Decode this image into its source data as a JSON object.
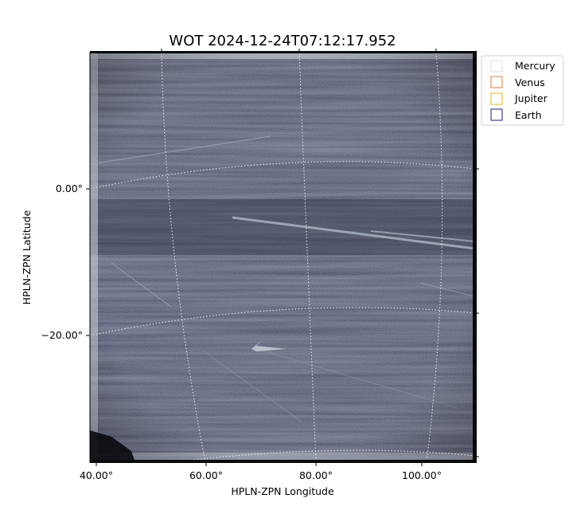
{
  "chart_data": {
    "type": "image",
    "title": "WOT 2024-12-24T07:12:17.952",
    "xlabel": "HPLN-ZPN Longitude",
    "ylabel": "HPLN-ZPN Latitude",
    "x_ticks": [
      "40.00°",
      "60.00°",
      "80.00°",
      "100.00°"
    ],
    "y_ticks": [
      "0.00°",
      "−20.00°"
    ],
    "grid": true,
    "grid_style": "dotted white",
    "colormap": "grayscale-blue",
    "legend": {
      "placement": "top-right",
      "entries": [
        {
          "name": "Mercury",
          "color": "#dddddd"
        },
        {
          "name": "Venus",
          "color": "#e07b39"
        },
        {
          "name": "Jupiter",
          "color": "#e6b422"
        },
        {
          "name": "Earth",
          "color": "#1a1a80"
        }
      ]
    }
  }
}
